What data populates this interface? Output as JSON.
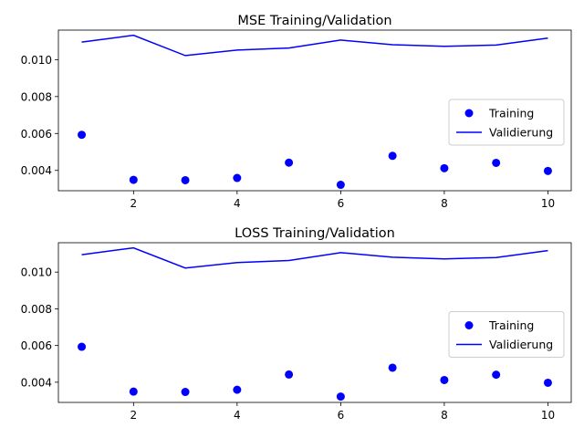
{
  "chart_data": [
    {
      "type": "line",
      "title": "MSE Training/Validation",
      "xlabel": "",
      "ylabel": "",
      "x": [
        1,
        2,
        3,
        4,
        5,
        6,
        7,
        8,
        9,
        10
      ],
      "series": [
        {
          "name": "Training",
          "style": "points",
          "color": "#0000ff",
          "values": [
            0.00593,
            0.00349,
            0.00347,
            0.00359,
            0.00442,
            0.00322,
            0.00479,
            0.00412,
            0.00441,
            0.00397
          ]
        },
        {
          "name": "Validierung",
          "style": "line",
          "color": "#0000ff",
          "values": [
            0.01095,
            0.01132,
            0.01022,
            0.01052,
            0.01063,
            0.01106,
            0.01081,
            0.01072,
            0.01079,
            0.01117
          ]
        }
      ],
      "xlim": [
        0.55,
        10.45
      ],
      "ylim": [
        0.0029,
        0.0116
      ],
      "xticks": [
        2,
        4,
        6,
        8,
        10
      ],
      "xtick_labels": [
        "2",
        "4",
        "6",
        "8",
        "10"
      ],
      "yticks": [
        0.004,
        0.006,
        0.008,
        0.01
      ],
      "ytick_labels": [
        "0.004",
        "0.006",
        "0.008",
        "0.010"
      ],
      "grid": false,
      "legend": "center-right"
    },
    {
      "type": "line",
      "title": "LOSS Training/Validation",
      "xlabel": "",
      "ylabel": "",
      "x": [
        1,
        2,
        3,
        4,
        5,
        6,
        7,
        8,
        9,
        10
      ],
      "series": [
        {
          "name": "Training",
          "style": "points",
          "color": "#0000ff",
          "values": [
            0.00593,
            0.00349,
            0.00347,
            0.00359,
            0.00442,
            0.00322,
            0.00479,
            0.00412,
            0.00441,
            0.00397
          ]
        },
        {
          "name": "Validierung",
          "style": "line",
          "color": "#0000ff",
          "values": [
            0.01095,
            0.01132,
            0.01022,
            0.01052,
            0.01063,
            0.01106,
            0.01081,
            0.01072,
            0.01079,
            0.01117
          ]
        }
      ],
      "xlim": [
        0.55,
        10.45
      ],
      "ylim": [
        0.0029,
        0.0116
      ],
      "xticks": [
        2,
        4,
        6,
        8,
        10
      ],
      "xtick_labels": [
        "2",
        "4",
        "6",
        "8",
        "10"
      ],
      "yticks": [
        0.004,
        0.006,
        0.008,
        0.01
      ],
      "ytick_labels": [
        "0.004",
        "0.006",
        "0.008",
        "0.010"
      ],
      "grid": false,
      "legend": "center-right"
    }
  ]
}
